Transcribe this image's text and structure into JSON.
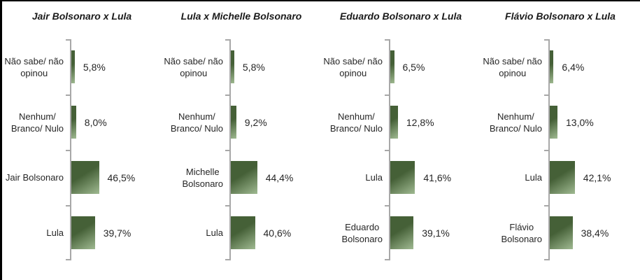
{
  "colors": {
    "bar_gradient_dark": "#456037",
    "bar_gradient_light": "#a0ba92",
    "axis_line": "#a8a8a8",
    "text": "#262626",
    "panel_border": "#000000"
  },
  "chart_data": [
    {
      "type": "bar",
      "orientation": "horizontal",
      "title": "Jair Bolsonaro x Lula",
      "categories": [
        "Não sabe/ não\nopinou",
        "Nenhum/\nBranco/ Nulo",
        "Jair Bolsonaro",
        "Lula"
      ],
      "values": [
        5.8,
        8.0,
        46.5,
        39.7
      ],
      "value_labels": [
        "5,8%",
        "8,0%",
        "46,5%",
        "39,7%"
      ],
      "unit": "%",
      "grid": false,
      "x_axis_labels_visible": false,
      "legend": false
    },
    {
      "type": "bar",
      "orientation": "horizontal",
      "title": "Lula x Michelle Bolsonaro",
      "categories": [
        "Não sabe/ não\nopinou",
        "Nenhum/\nBranco/ Nulo",
        "Michelle\nBolsonaro",
        "Lula"
      ],
      "values": [
        5.8,
        9.2,
        44.4,
        40.6
      ],
      "value_labels": [
        "5,8%",
        "9,2%",
        "44,4%",
        "40,6%"
      ],
      "unit": "%",
      "grid": false,
      "x_axis_labels_visible": false,
      "legend": false
    },
    {
      "type": "bar",
      "orientation": "horizontal",
      "title": "Eduardo Bolsonaro x Lula",
      "categories": [
        "Não sabe/ não\nopinou",
        "Nenhum/\nBranco/ Nulo",
        "Lula",
        "Eduardo\nBolsonaro"
      ],
      "values": [
        6.5,
        12.8,
        41.6,
        39.1
      ],
      "value_labels": [
        "6,5%",
        "12,8%",
        "41,6%",
        "39,1%"
      ],
      "unit": "%",
      "grid": false,
      "x_axis_labels_visible": false,
      "legend": false
    },
    {
      "type": "bar",
      "orientation": "horizontal",
      "title": "Flávio Bolsonaro x Lula",
      "categories": [
        "Não sabe/ não\nopinou",
        "Nenhum/\nBranco/ Nulo",
        "Lula",
        "Flávio\nBolsonaro"
      ],
      "values": [
        6.4,
        13.0,
        42.1,
        38.4
      ],
      "value_labels": [
        "6,4%",
        "13,0%",
        "42,1%",
        "38,4%"
      ],
      "unit": "%",
      "grid": false,
      "x_axis_labels_visible": false,
      "legend": false
    }
  ]
}
